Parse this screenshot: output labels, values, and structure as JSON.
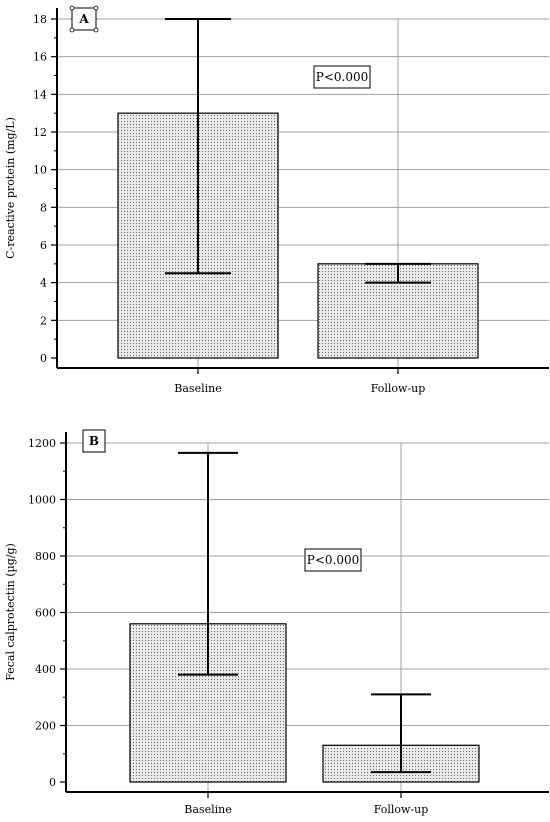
{
  "chart_data": [
    {
      "type": "bar",
      "panel_label": "A",
      "categories": [
        "Baseline",
        "Follow-up"
      ],
      "values": [
        13,
        5
      ],
      "error_low": [
        4.5,
        4
      ],
      "error_high": [
        18,
        5
      ],
      "ylabel": "C-reactive protein (mg/L)",
      "xlabel": "",
      "ylim": [
        0,
        18
      ],
      "yticks": [
        0,
        2,
        4,
        6,
        8,
        10,
        12,
        14,
        16,
        18
      ],
      "annotation": "P<0.000",
      "grid": true,
      "colors": {
        "bar_fill": "#e6e6e6",
        "bar_dots": "#6b6b6b",
        "grid": "#a0a0a0",
        "axis": "#000000"
      }
    },
    {
      "type": "bar",
      "panel_label": "B",
      "categories": [
        "Baseline",
        "Follow-up"
      ],
      "values": [
        560,
        130
      ],
      "error_low": [
        380,
        35
      ],
      "error_high": [
        1165,
        310
      ],
      "ylabel": "Fecal calprotectin (µg/g)",
      "xlabel": "",
      "ylim": [
        0,
        1200
      ],
      "yticks": [
        0,
        200,
        400,
        600,
        800,
        1000,
        1200
      ],
      "annotation": "P<0.000",
      "grid": true,
      "colors": {
        "bar_fill": "#e6e6e6",
        "bar_dots": "#6b6b6b",
        "grid": "#a0a0a0",
        "axis": "#000000"
      }
    }
  ]
}
